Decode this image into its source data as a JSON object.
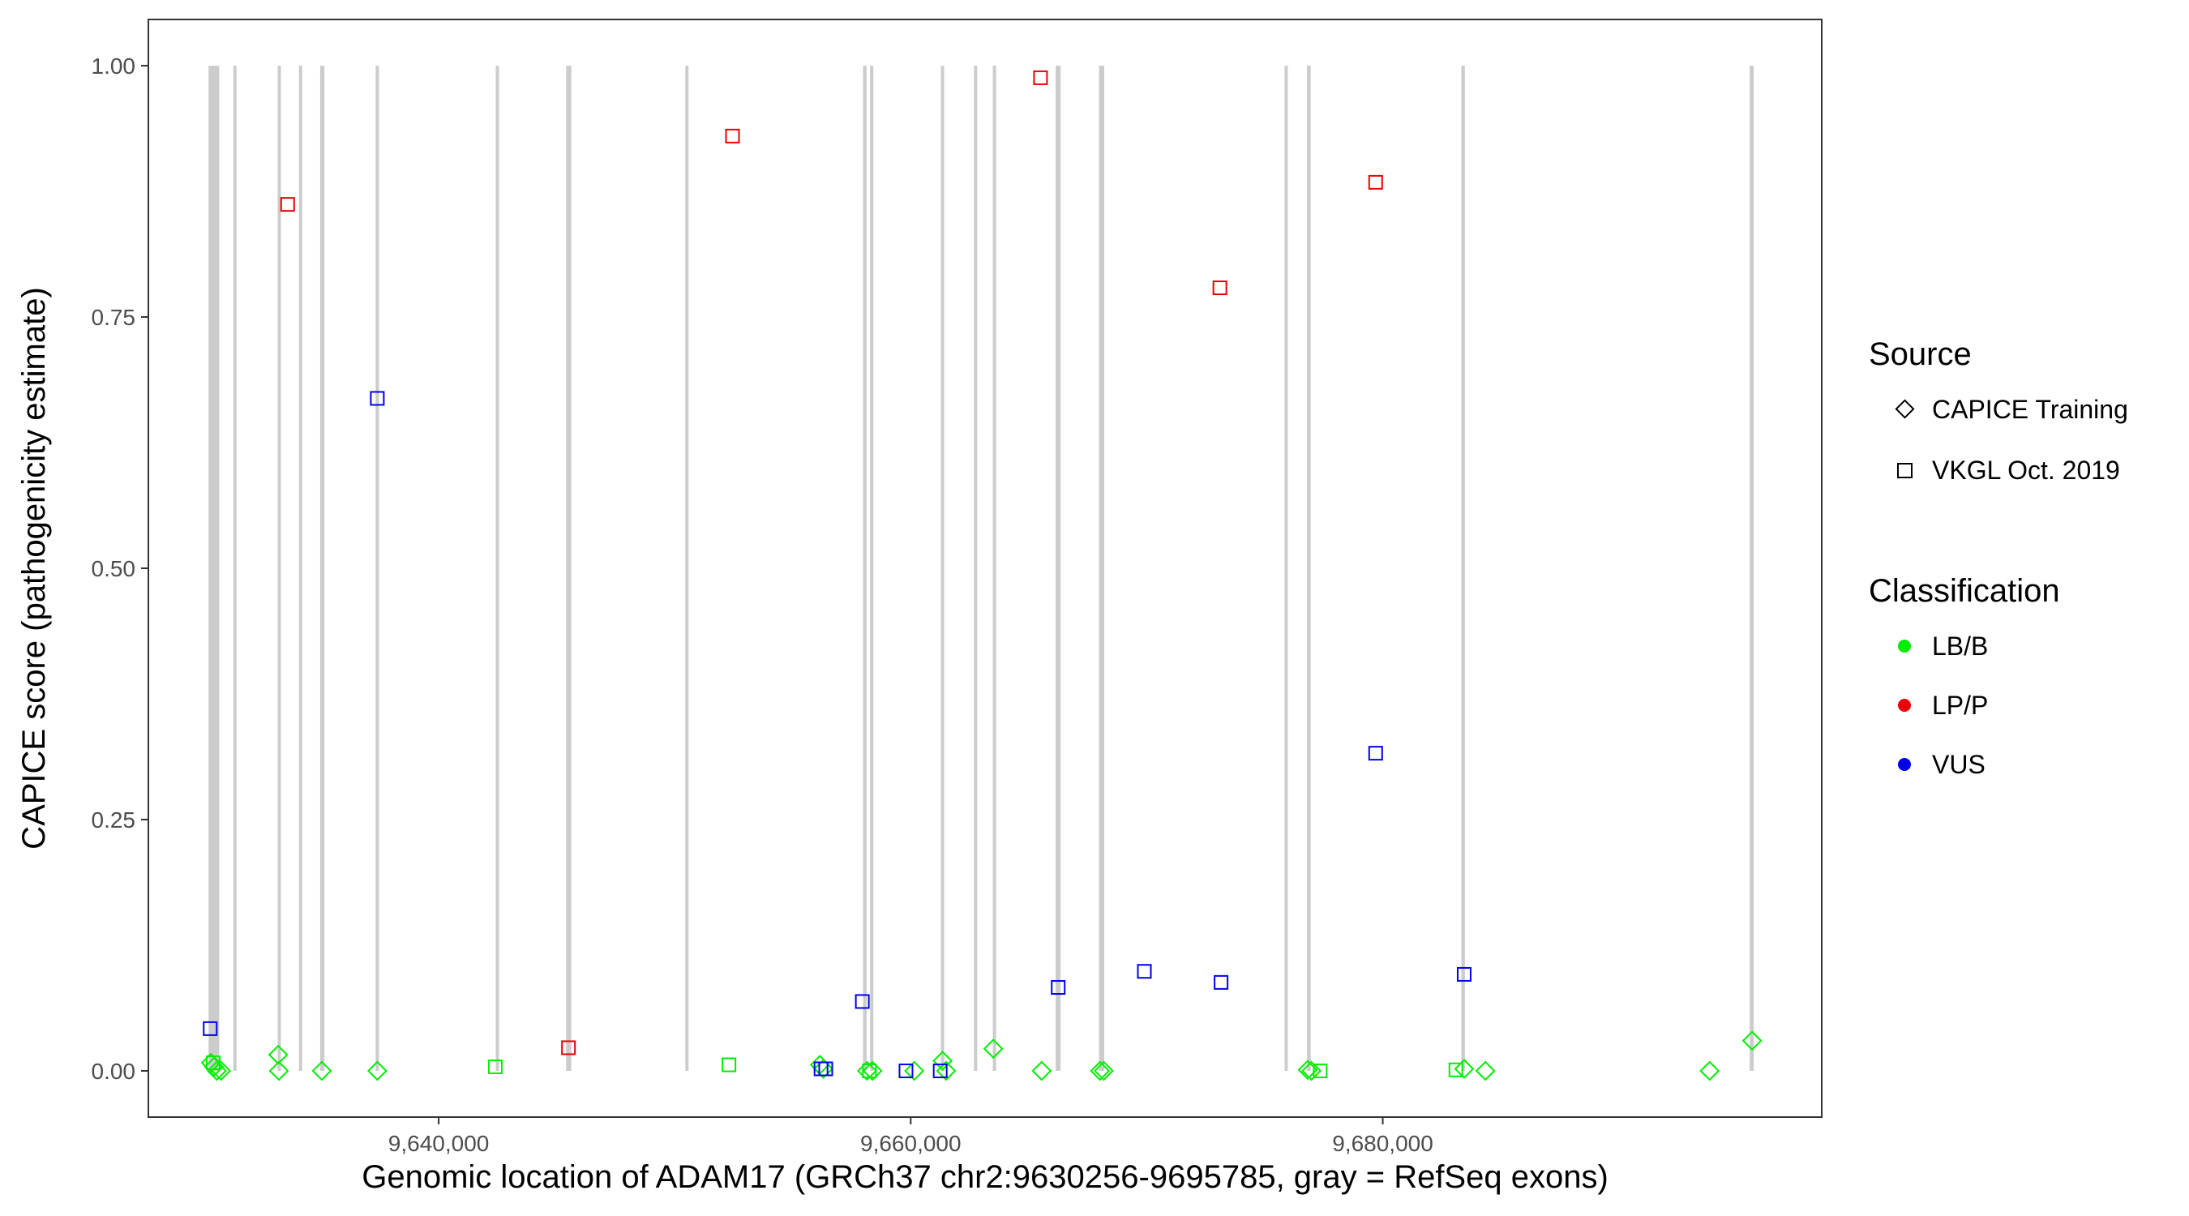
{
  "chart_data": {
    "type": "scatter",
    "title": "",
    "xlabel": "Genomic location of ADAM17 (GRCh37 chr2:9630256-9695785, gray = RefSeq exons)",
    "ylabel": "CAPICE score (pathogenicity estimate)",
    "xlim": [
      9627700,
      9698600
    ],
    "ylim": [
      -0.046,
      1.046
    ],
    "x_ticks": [
      9640000,
      9660000,
      9680000
    ],
    "x_tick_labels": [
      "9,640,000",
      "9,660,000",
      "9,680,000"
    ],
    "y_ticks": [
      0.0,
      0.25,
      0.5,
      0.75,
      1.0
    ],
    "y_tick_labels": [
      "0.00",
      "0.25",
      "0.50",
      "0.75",
      "1.00"
    ],
    "grid": false,
    "exons": [
      {
        "start": 9630250,
        "end": 9630700
      },
      {
        "start": 9631300,
        "end": 9631420
      },
      {
        "start": 9633180,
        "end": 9633280
      },
      {
        "start": 9634080,
        "end": 9634180
      },
      {
        "start": 9634980,
        "end": 9635160
      },
      {
        "start": 9637330,
        "end": 9637470
      },
      {
        "start": 9642420,
        "end": 9642540
      },
      {
        "start": 9645400,
        "end": 9645620
      },
      {
        "start": 9650450,
        "end": 9650570
      },
      {
        "start": 9657980,
        "end": 9658130
      },
      {
        "start": 9658280,
        "end": 9658400
      },
      {
        "start": 9661280,
        "end": 9661400
      },
      {
        "start": 9662680,
        "end": 9662790
      },
      {
        "start": 9663480,
        "end": 9663610
      },
      {
        "start": 9666140,
        "end": 9666350
      },
      {
        "start": 9667980,
        "end": 9668200
      },
      {
        "start": 9675840,
        "end": 9675950
      },
      {
        "start": 9676790,
        "end": 9676950
      },
      {
        "start": 9683330,
        "end": 9683480
      },
      {
        "start": 9695550,
        "end": 9695720
      }
    ],
    "legend": {
      "position": "right",
      "source": {
        "title": "Source",
        "items": [
          {
            "label": "CAPICE Training",
            "shape": "diamond"
          },
          {
            "label": "VKGL Oct. 2019",
            "shape": "square"
          }
        ]
      },
      "classification": {
        "title": "Classification",
        "items": [
          {
            "label": "LB/B",
            "color": "#00ee00"
          },
          {
            "label": "LP/P",
            "color": "#ee0000"
          },
          {
            "label": "VUS",
            "color": "#0000ee"
          }
        ]
      }
    },
    "colors": {
      "LB/B": "#00ee00",
      "LP/P": "#ee0000",
      "VUS": "#0000ee",
      "exon": "#cccccc"
    },
    "series": [
      {
        "name": "CAPICE Training",
        "shape": "diamond",
        "points": [
          {
            "x": 9630350,
            "y": 0.008,
            "class": "LB/B"
          },
          {
            "x": 9630480,
            "y": 0.004,
            "class": "LB/B"
          },
          {
            "x": 9630600,
            "y": 0.0,
            "class": "LB/B"
          },
          {
            "x": 9630780,
            "y": 0.0,
            "class": "LB/B"
          },
          {
            "x": 9633200,
            "y": 0.016,
            "class": "LB/B"
          },
          {
            "x": 9633230,
            "y": 0.0,
            "class": "LB/B"
          },
          {
            "x": 9635050,
            "y": 0.0,
            "class": "LB/B"
          },
          {
            "x": 9637400,
            "y": 0.0,
            "class": "LB/B"
          },
          {
            "x": 9656150,
            "y": 0.006,
            "class": "LB/B"
          },
          {
            "x": 9656300,
            "y": 0.002,
            "class": "LB/B"
          },
          {
            "x": 9658150,
            "y": 0.0,
            "class": "LB/B"
          },
          {
            "x": 9658380,
            "y": 0.0,
            "class": "LB/B"
          },
          {
            "x": 9660150,
            "y": 0.0,
            "class": "LB/B"
          },
          {
            "x": 9661350,
            "y": 0.01,
            "class": "LB/B"
          },
          {
            "x": 9661500,
            "y": 0.0,
            "class": "LB/B"
          },
          {
            "x": 9663500,
            "y": 0.022,
            "class": "LB/B"
          },
          {
            "x": 9665550,
            "y": 0.0,
            "class": "LB/B"
          },
          {
            "x": 9668020,
            "y": 0.0,
            "class": "LB/B"
          },
          {
            "x": 9668180,
            "y": 0.0,
            "class": "LB/B"
          },
          {
            "x": 9676820,
            "y": 0.001,
            "class": "LB/B"
          },
          {
            "x": 9676980,
            "y": 0.0,
            "class": "LB/B"
          },
          {
            "x": 9683450,
            "y": 0.002,
            "class": "LB/B"
          },
          {
            "x": 9684350,
            "y": 0.0,
            "class": "LB/B"
          },
          {
            "x": 9693850,
            "y": 0.0,
            "class": "LB/B"
          },
          {
            "x": 9695650,
            "y": 0.03,
            "class": "LB/B"
          }
        ]
      },
      {
        "name": "VKGL Oct. 2019",
        "shape": "square",
        "points": [
          {
            "x": 9630320,
            "y": 0.042,
            "class": "VUS"
          },
          {
            "x": 9630450,
            "y": 0.008,
            "class": "LB/B"
          },
          {
            "x": 9633600,
            "y": 0.862,
            "class": "LP/P"
          },
          {
            "x": 9637400,
            "y": 0.669,
            "class": "VUS"
          },
          {
            "x": 9642400,
            "y": 0.004,
            "class": "LB/B"
          },
          {
            "x": 9645500,
            "y": 0.023,
            "class": "LP/P"
          },
          {
            "x": 9652300,
            "y": 0.006,
            "class": "LB/B"
          },
          {
            "x": 9652450,
            "y": 0.93,
            "class": "LP/P"
          },
          {
            "x": 9656200,
            "y": 0.002,
            "class": "VUS"
          },
          {
            "x": 9656400,
            "y": 0.002,
            "class": "VUS"
          },
          {
            "x": 9657950,
            "y": 0.069,
            "class": "VUS"
          },
          {
            "x": 9658250,
            "y": 0.0,
            "class": "LB/B"
          },
          {
            "x": 9659800,
            "y": 0.0,
            "class": "VUS"
          },
          {
            "x": 9661250,
            "y": 0.0,
            "class": "VUS"
          },
          {
            "x": 9665500,
            "y": 0.988,
            "class": "LP/P"
          },
          {
            "x": 9666250,
            "y": 0.083,
            "class": "VUS"
          },
          {
            "x": 9669900,
            "y": 0.099,
            "class": "VUS"
          },
          {
            "x": 9673100,
            "y": 0.779,
            "class": "LP/P"
          },
          {
            "x": 9673150,
            "y": 0.088,
            "class": "VUS"
          },
          {
            "x": 9677350,
            "y": 0.0,
            "class": "LB/B"
          },
          {
            "x": 9679700,
            "y": 0.884,
            "class": "LP/P"
          },
          {
            "x": 9679700,
            "y": 0.316,
            "class": "VUS"
          },
          {
            "x": 9683100,
            "y": 0.001,
            "class": "LB/B"
          },
          {
            "x": 9683450,
            "y": 0.096,
            "class": "VUS"
          }
        ]
      }
    ]
  }
}
